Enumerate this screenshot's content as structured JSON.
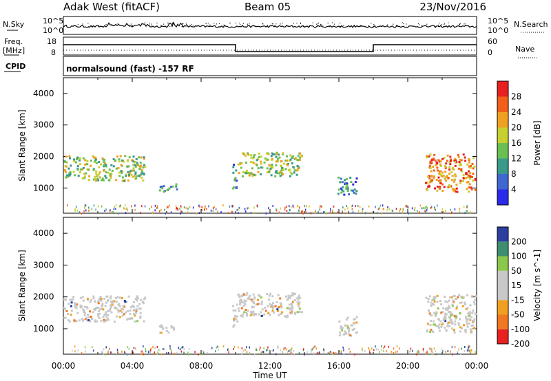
{
  "header": {
    "title": "Adak West (fitACF)",
    "beam": "Beam 05",
    "date": "23/Nov/2016"
  },
  "labels": {
    "nsky": "N.Sky",
    "nsearch": "N.Search",
    "freq": "Freq.",
    "freq_unit": "[MHz]",
    "nave": "Nave",
    "cpid": "CPID",
    "program": "normalsound (fast) -157 RF"
  },
  "colors": {
    "power": [
      "#2a2ae8",
      "#3f67d0",
      "#3a9a8a",
      "#6abf52",
      "#c8d030",
      "#f0a020",
      "#f06018",
      "#e82020"
    ],
    "velocity": [
      "#e82020",
      "#f07820",
      "#f0a020",
      "#c8c8c8",
      "#c8c8c8",
      "#8ac84a",
      "#3e8f70",
      "#2a3fa0"
    ]
  },
  "chart_data": [
    {
      "type": "line",
      "panel": "noise",
      "ylabel_left": "N.Sky",
      "ylabel_right": "N.Search",
      "left_ticks": [
        "10^5",
        "10^0"
      ],
      "right_ticks": [
        "10^5",
        "10^0"
      ],
      "xlim": [
        "00:00",
        "24:00"
      ]
    },
    {
      "type": "line",
      "panel": "frequency",
      "ylabel_left": "Freq. [MHz]",
      "ylabel_right": "Nave",
      "left_ticks": [
        "18",
        "8"
      ],
      "right_ticks": [
        "60",
        "0"
      ],
      "segments": [
        {
          "x_start": "00:00",
          "x_end": "10:00",
          "freq_level": "high"
        },
        {
          "x_start": "10:00",
          "x_end": "18:00",
          "freq_level": "low"
        },
        {
          "x_start": "18:00",
          "x_end": "24:00",
          "freq_level": "high"
        }
      ]
    },
    {
      "type": "heatmap",
      "panel": "power",
      "ylabel": "Slant Range [km]",
      "ylim": [
        200,
        4500
      ],
      "yticks": [
        "4000",
        "3000",
        "2000",
        "1000"
      ],
      "colorbar_label": "Power [dB]",
      "colorbar_ticks": [
        "28",
        "24",
        "20",
        "16",
        "12",
        "8",
        "4"
      ],
      "scatter_regions": [
        {
          "t0": 0.0,
          "t1": 4.7,
          "r0": 1250,
          "r1": 2050,
          "kind": "band"
        },
        {
          "t0": 5.5,
          "t1": 6.6,
          "r0": 900,
          "r1": 1150,
          "kind": "patch"
        },
        {
          "t0": 9.8,
          "t1": 10.1,
          "r0": 1000,
          "r1": 1800,
          "kind": "strip"
        },
        {
          "t0": 10.1,
          "t1": 13.8,
          "r0": 1400,
          "r1": 2150,
          "kind": "band"
        },
        {
          "t0": 15.9,
          "t1": 17.0,
          "r0": 800,
          "r1": 1400,
          "kind": "patch"
        },
        {
          "t0": 21.0,
          "t1": 23.9,
          "r0": 900,
          "r1": 2100,
          "kind": "strong"
        }
      ]
    },
    {
      "type": "heatmap",
      "panel": "velocity",
      "ylabel": "Slant Range [km]",
      "ylim": [
        200,
        4500
      ],
      "yticks": [
        "4000",
        "3000",
        "2000",
        "1000"
      ],
      "colorbar_label": "Velocity [m s^-1]",
      "colorbar_ticks": [
        "200",
        "100",
        "50",
        "15",
        "-15",
        "-50",
        "-100",
        "-200"
      ],
      "xlabel": "Time UT",
      "xticks": [
        "00:00",
        "04:00",
        "08:00",
        "12:00",
        "16:00",
        "20:00",
        "00:00"
      ]
    }
  ]
}
